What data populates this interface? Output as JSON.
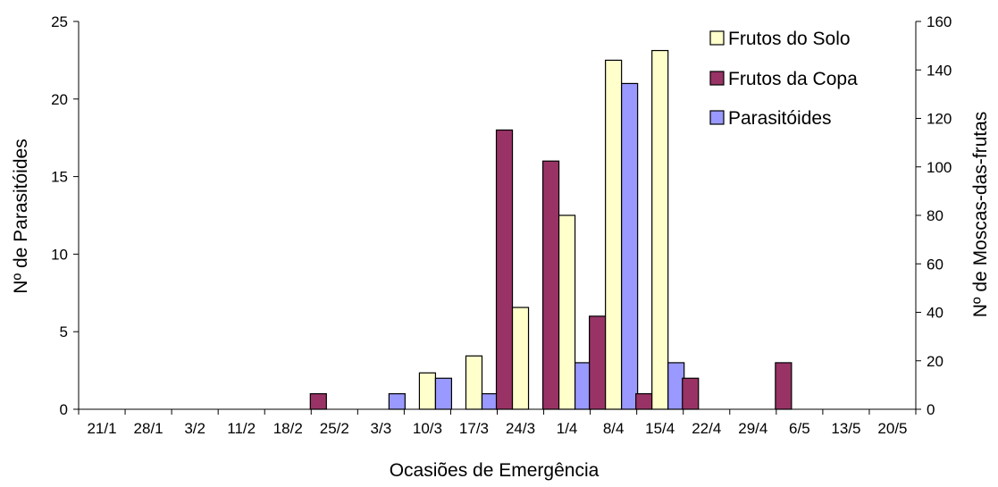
{
  "chart_data": {
    "type": "bar",
    "xlabel": "Ocasiões de Emergência",
    "ylabel_left": "Nº de Parasitóides",
    "ylabel_right": "Nº de Moscas-das-frutas",
    "ylim_left": [
      0,
      25
    ],
    "ylim_right": [
      0,
      160
    ],
    "yticks_left": [
      "0",
      "5",
      "10",
      "15",
      "20",
      "25"
    ],
    "yticks_right": [
      "0",
      "20",
      "40",
      "60",
      "80",
      "100",
      "120",
      "140",
      "160"
    ],
    "categories": [
      "21/1",
      "28/1",
      "3/2",
      "11/2",
      "18/2",
      "25/2",
      "3/3",
      "10/3",
      "17/3",
      "24/3",
      "1/4",
      "8/4",
      "15/4",
      "22/4",
      "29/4",
      "6/5",
      "13/5",
      "20/5"
    ],
    "grid": false,
    "legend_position": "top-right",
    "series": [
      {
        "name": "Frutos do Solo",
        "axis": "right",
        "color": "#FFFFCC",
        "values": [
          0,
          0,
          0,
          0,
          0,
          0,
          0,
          15,
          22,
          42,
          80,
          144,
          148,
          0,
          0,
          0,
          0,
          0
        ]
      },
      {
        "name": "Frutos da Copa",
        "axis": "left",
        "color": "#993366",
        "values": [
          0,
          0,
          0,
          0,
          0,
          1,
          0,
          0,
          0,
          18,
          16,
          6,
          1,
          2,
          0,
          3,
          0,
          0
        ]
      },
      {
        "name": "Parasitóides",
        "axis": "left",
        "color": "#9999FF",
        "values": [
          0,
          0,
          0,
          0,
          0,
          0,
          1,
          2,
          1,
          0,
          3,
          21,
          3,
          0,
          0,
          0,
          0,
          0
        ]
      }
    ]
  }
}
